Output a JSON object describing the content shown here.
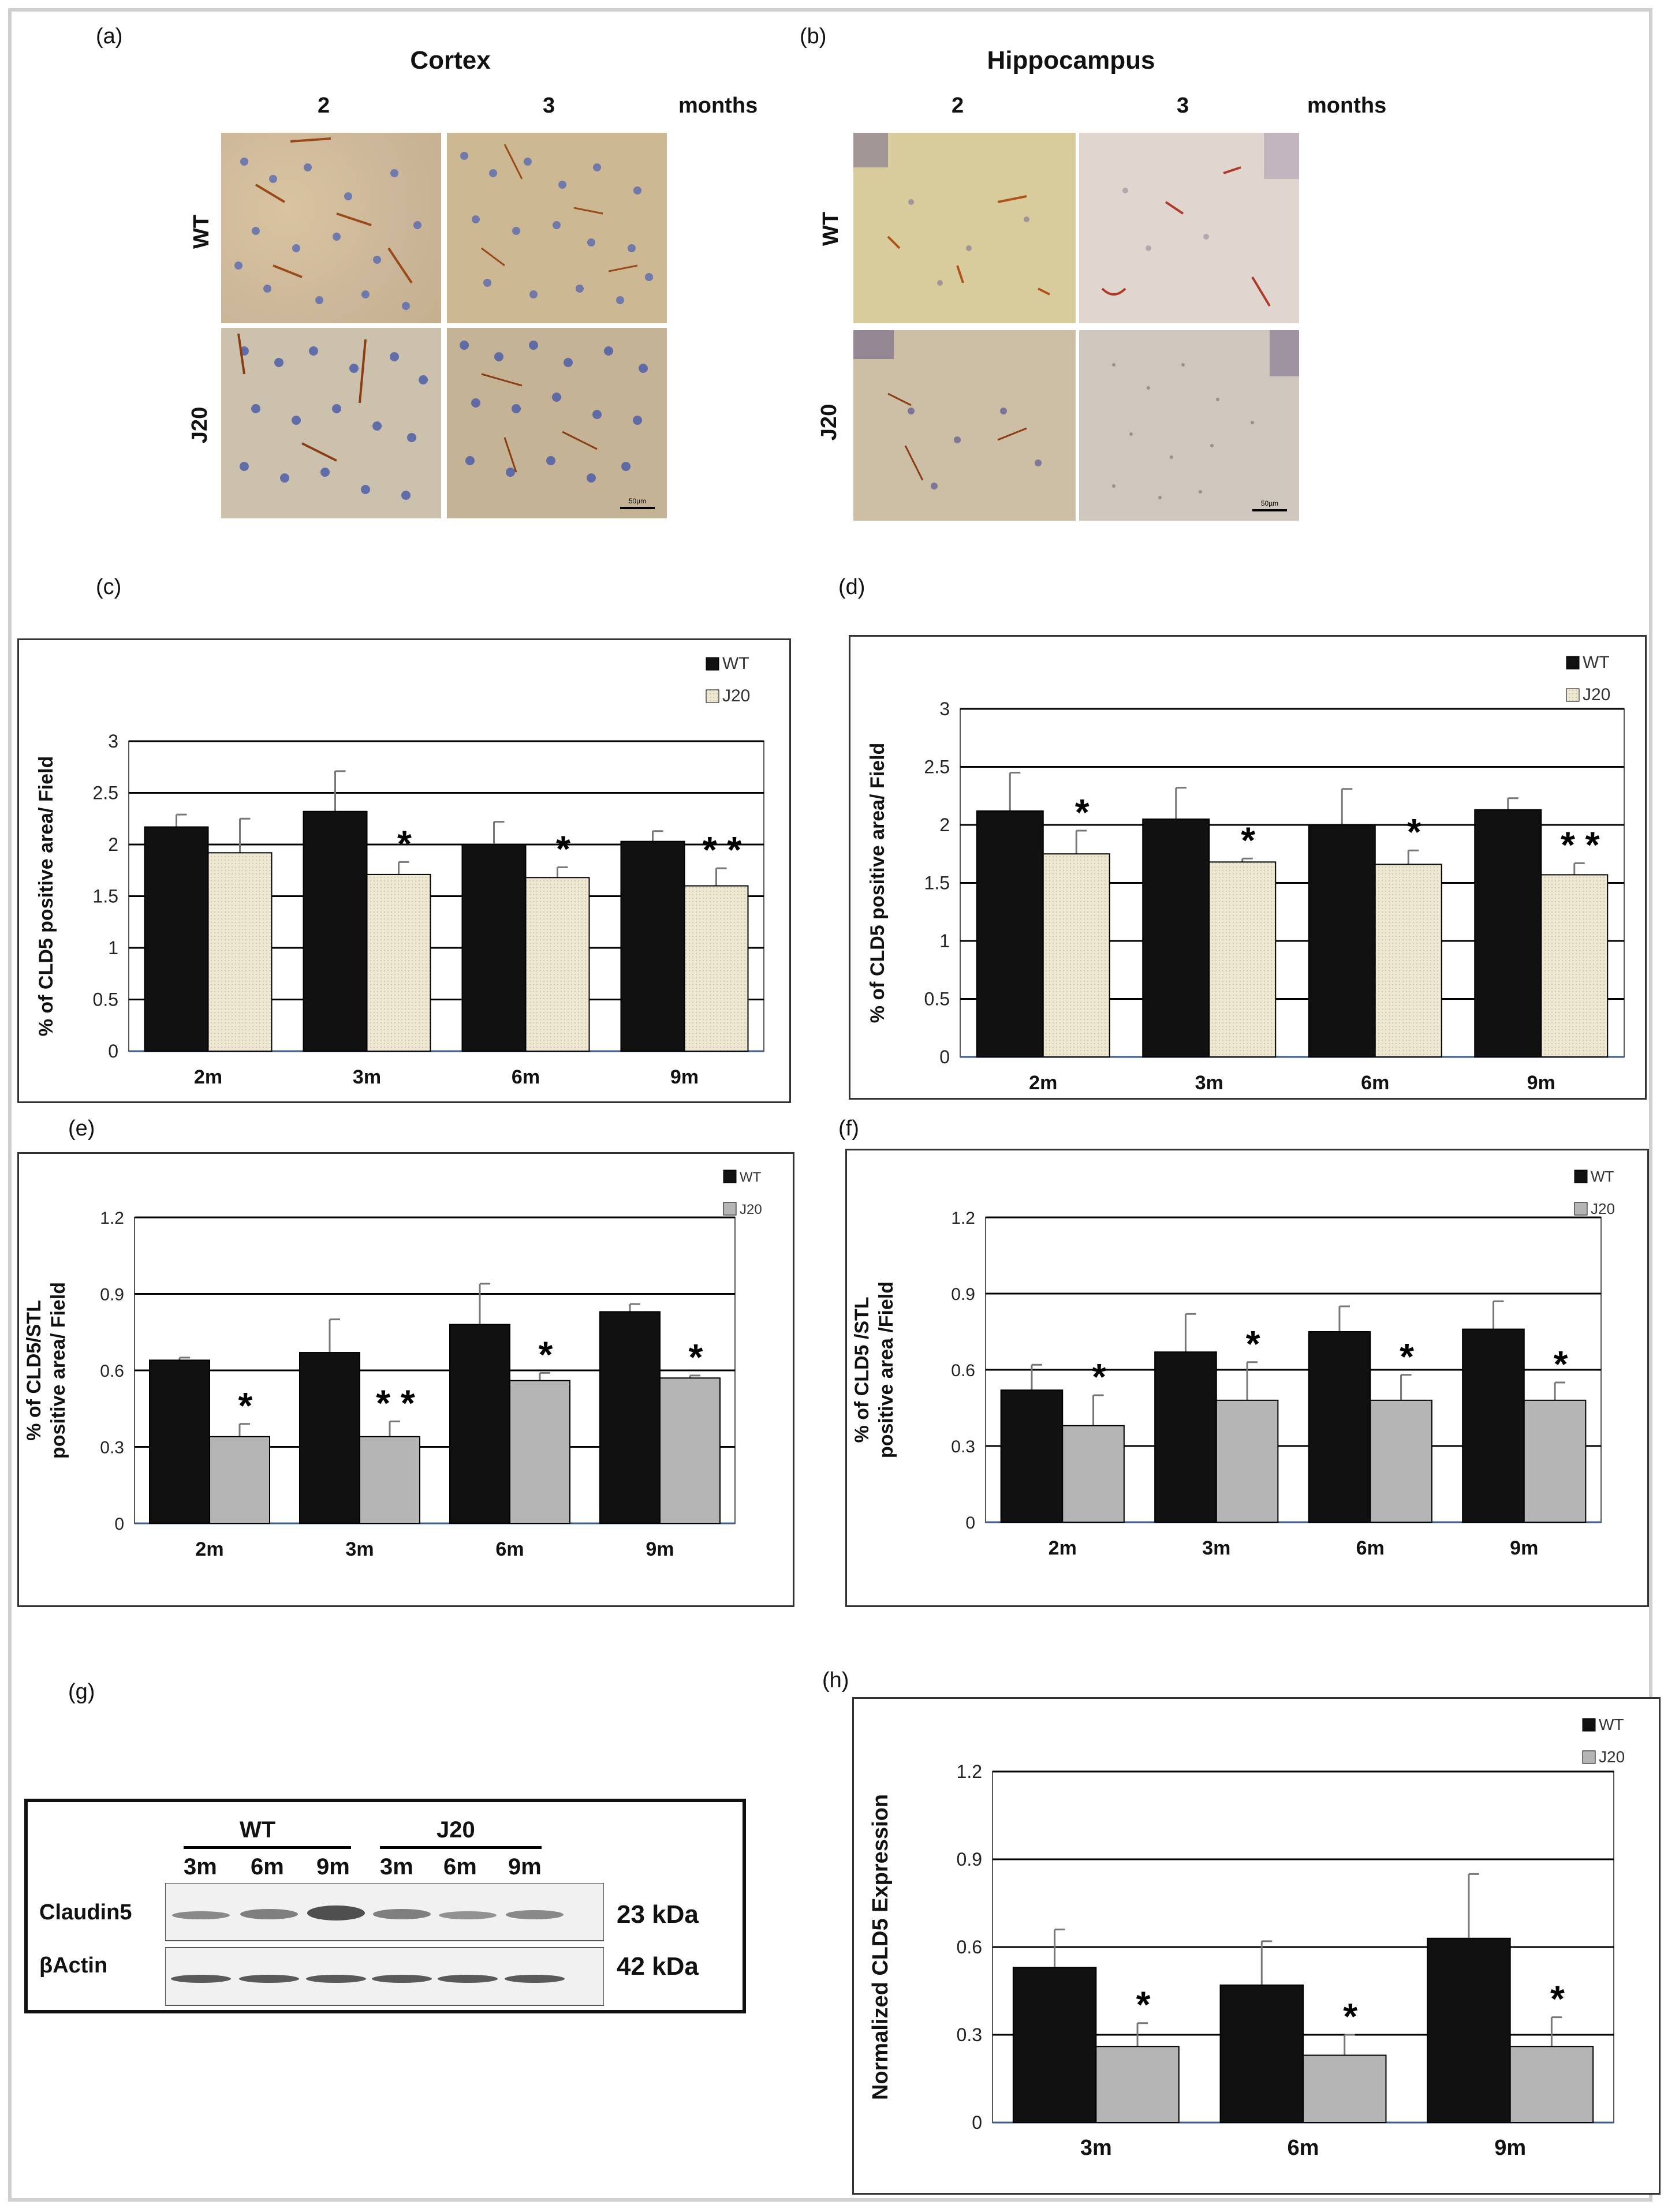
{
  "panel_labels": {
    "a": "(a)",
    "b": "(b)",
    "c": "(c)",
    "d": "(d)",
    "e": "(e)",
    "f": "(f)",
    "g": "(g)",
    "h": "(h)"
  },
  "histology": {
    "cortex": {
      "title": "Cortex",
      "col1": "2",
      "col2": "3",
      "months": "months",
      "row1": "WT",
      "row2": "J20",
      "scale": "50µm"
    },
    "hippocampus": {
      "title": "Hippocampus",
      "col1": "2",
      "col2": "3",
      "months": "months",
      "row1": "WT",
      "row2": "J20",
      "scale": "50µm"
    }
  },
  "colors": {
    "wt": "#111111",
    "j20_beige": "#eee8d2",
    "j20_gray": "#b5b5b5"
  },
  "western_blot": {
    "group_wt": "WT",
    "group_j20": "J20",
    "lanes": [
      "3m",
      "6m",
      "9m",
      "3m",
      "6m",
      "9m"
    ],
    "band1_label": "Claudin5",
    "band1_size": "23 kDa",
    "band2_label": "βActin",
    "band2_size": "42 kDa"
  },
  "chart_data": [
    {
      "id": "c",
      "type": "bar",
      "ylabel": "% of CLD5 positive area/ Field",
      "categories": [
        "2m",
        "3m",
        "6m",
        "9m"
      ],
      "ylim": [
        0,
        3
      ],
      "yticks": [
        "0",
        "0.5",
        "1",
        "1.5",
        "2",
        "2.5",
        "3"
      ],
      "tickvals": [
        0,
        0.5,
        1,
        1.5,
        2,
        2.5,
        3
      ],
      "series": [
        {
          "name": "WT",
          "values": [
            2.17,
            2.32,
            2.0,
            2.03
          ],
          "errors": [
            0.12,
            0.39,
            0.22,
            0.1
          ]
        },
        {
          "name": "J20",
          "values": [
            1.92,
            1.71,
            1.68,
            1.6
          ],
          "errors": [
            0.33,
            0.12,
            0.1,
            0.17
          ]
        }
      ],
      "significance": [
        "",
        "*",
        "*",
        "**"
      ],
      "legend": [
        "WT",
        "J20"
      ]
    },
    {
      "id": "d",
      "type": "bar",
      "ylabel": "% of CLD5 positive area/ Field",
      "categories": [
        "2m",
        "3m",
        "6m",
        "9m"
      ],
      "ylim": [
        0,
        3
      ],
      "yticks": [
        "0",
        "0.5",
        "1",
        "1.5",
        "2",
        "2.5",
        "3"
      ],
      "tickvals": [
        0,
        0.5,
        1,
        1.5,
        2,
        2.5,
        3
      ],
      "series": [
        {
          "name": "WT",
          "values": [
            2.12,
            2.05,
            2.0,
            2.13
          ],
          "errors": [
            0.33,
            0.27,
            0.31,
            0.1
          ]
        },
        {
          "name": "J20",
          "values": [
            1.75,
            1.68,
            1.66,
            1.57
          ],
          "errors": [
            0.2,
            0.03,
            0.12,
            0.1
          ]
        }
      ],
      "significance": [
        "*",
        "*",
        "*",
        "**"
      ],
      "legend": [
        "WT",
        "J20"
      ]
    },
    {
      "id": "e",
      "type": "bar",
      "ylabel": "% of CLD5/STL positive area/ Field",
      "categories": [
        "2m",
        "3m",
        "6m",
        "9m"
      ],
      "ylim": [
        0,
        1.2
      ],
      "yticks": [
        "0",
        "0.3",
        "0.6",
        "0.9",
        "1.2"
      ],
      "tickvals": [
        0,
        0.3,
        0.6,
        0.9,
        1.2
      ],
      "series": [
        {
          "name": "WT",
          "values": [
            0.64,
            0.67,
            0.78,
            0.83
          ],
          "errors": [
            0.01,
            0.13,
            0.16,
            0.03
          ]
        },
        {
          "name": "J20",
          "values": [
            0.34,
            0.34,
            0.56,
            0.57
          ],
          "errors": [
            0.05,
            0.06,
            0.03,
            0.01
          ]
        }
      ],
      "significance": [
        "*",
        "**",
        "*",
        "*"
      ],
      "legend": [
        "WT",
        "J20"
      ]
    },
    {
      "id": "f",
      "type": "bar",
      "ylabel": "% of CLD5 /STL positive area /Field",
      "categories": [
        "2m",
        "3m",
        "6m",
        "9m"
      ],
      "ylim": [
        0,
        1.2
      ],
      "yticks": [
        "0",
        "0.3",
        "0.6",
        "0.9",
        "1.2"
      ],
      "tickvals": [
        0,
        0.3,
        0.6,
        0.9,
        1.2
      ],
      "series": [
        {
          "name": "WT",
          "values": [
            0.52,
            0.67,
            0.75,
            0.76
          ],
          "errors": [
            0.1,
            0.15,
            0.1,
            0.11
          ]
        },
        {
          "name": "J20",
          "values": [
            0.38,
            0.48,
            0.48,
            0.48
          ],
          "errors": [
            0.12,
            0.15,
            0.1,
            0.07
          ]
        }
      ],
      "significance": [
        "*",
        "*",
        "*",
        "*"
      ],
      "legend": [
        "WT",
        "J20"
      ]
    },
    {
      "id": "h",
      "type": "bar",
      "ylabel": "Normalized CLD5 Expression",
      "categories": [
        "3m",
        "6m",
        "9m"
      ],
      "ylim": [
        0,
        1.2
      ],
      "yticks": [
        "0",
        "0.3",
        "0.6",
        "0.9",
        "1.2"
      ],
      "tickvals": [
        0,
        0.3,
        0.6,
        0.9,
        1.2
      ],
      "series": [
        {
          "name": "WT",
          "values": [
            0.53,
            0.47,
            0.63
          ],
          "errors": [
            0.13,
            0.15,
            0.22
          ]
        },
        {
          "name": "J20",
          "values": [
            0.26,
            0.23,
            0.26
          ],
          "errors": [
            0.08,
            0.07,
            0.1
          ]
        }
      ],
      "significance": [
        "*",
        "*",
        "*"
      ],
      "legend": [
        "WT",
        "J20"
      ]
    }
  ]
}
